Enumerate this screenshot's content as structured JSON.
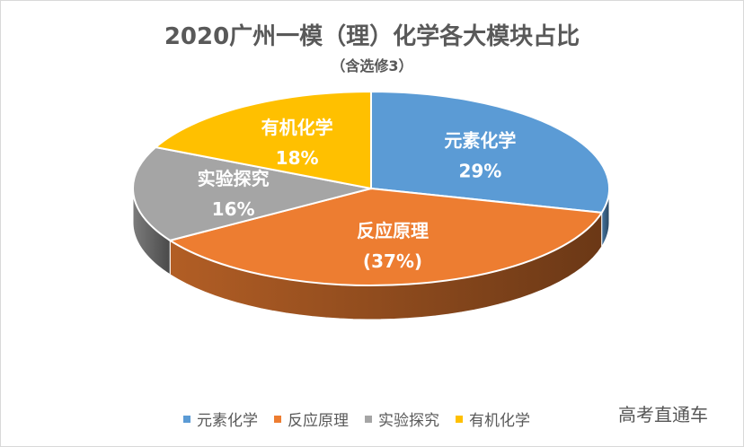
{
  "title": "2020广州一模（理）化学各大模块占比",
  "subtitle": "（含选修3）",
  "watermark": "高考直通车",
  "chart_data": {
    "type": "pie",
    "style": "3d",
    "slices": [
      {
        "name": "元素化学",
        "value": 29,
        "label": "29%",
        "color": "#5b9bd5"
      },
      {
        "name": "反应原理",
        "value": 37,
        "label": "(37%)",
        "color": "#ed7d31"
      },
      {
        "name": "实验探究",
        "value": 16,
        "label": "16%",
        "color": "#a5a5a5"
      },
      {
        "name": "有机化学",
        "value": 18,
        "label": "18%",
        "color": "#ffc000"
      }
    ],
    "legend_position": "bottom"
  }
}
